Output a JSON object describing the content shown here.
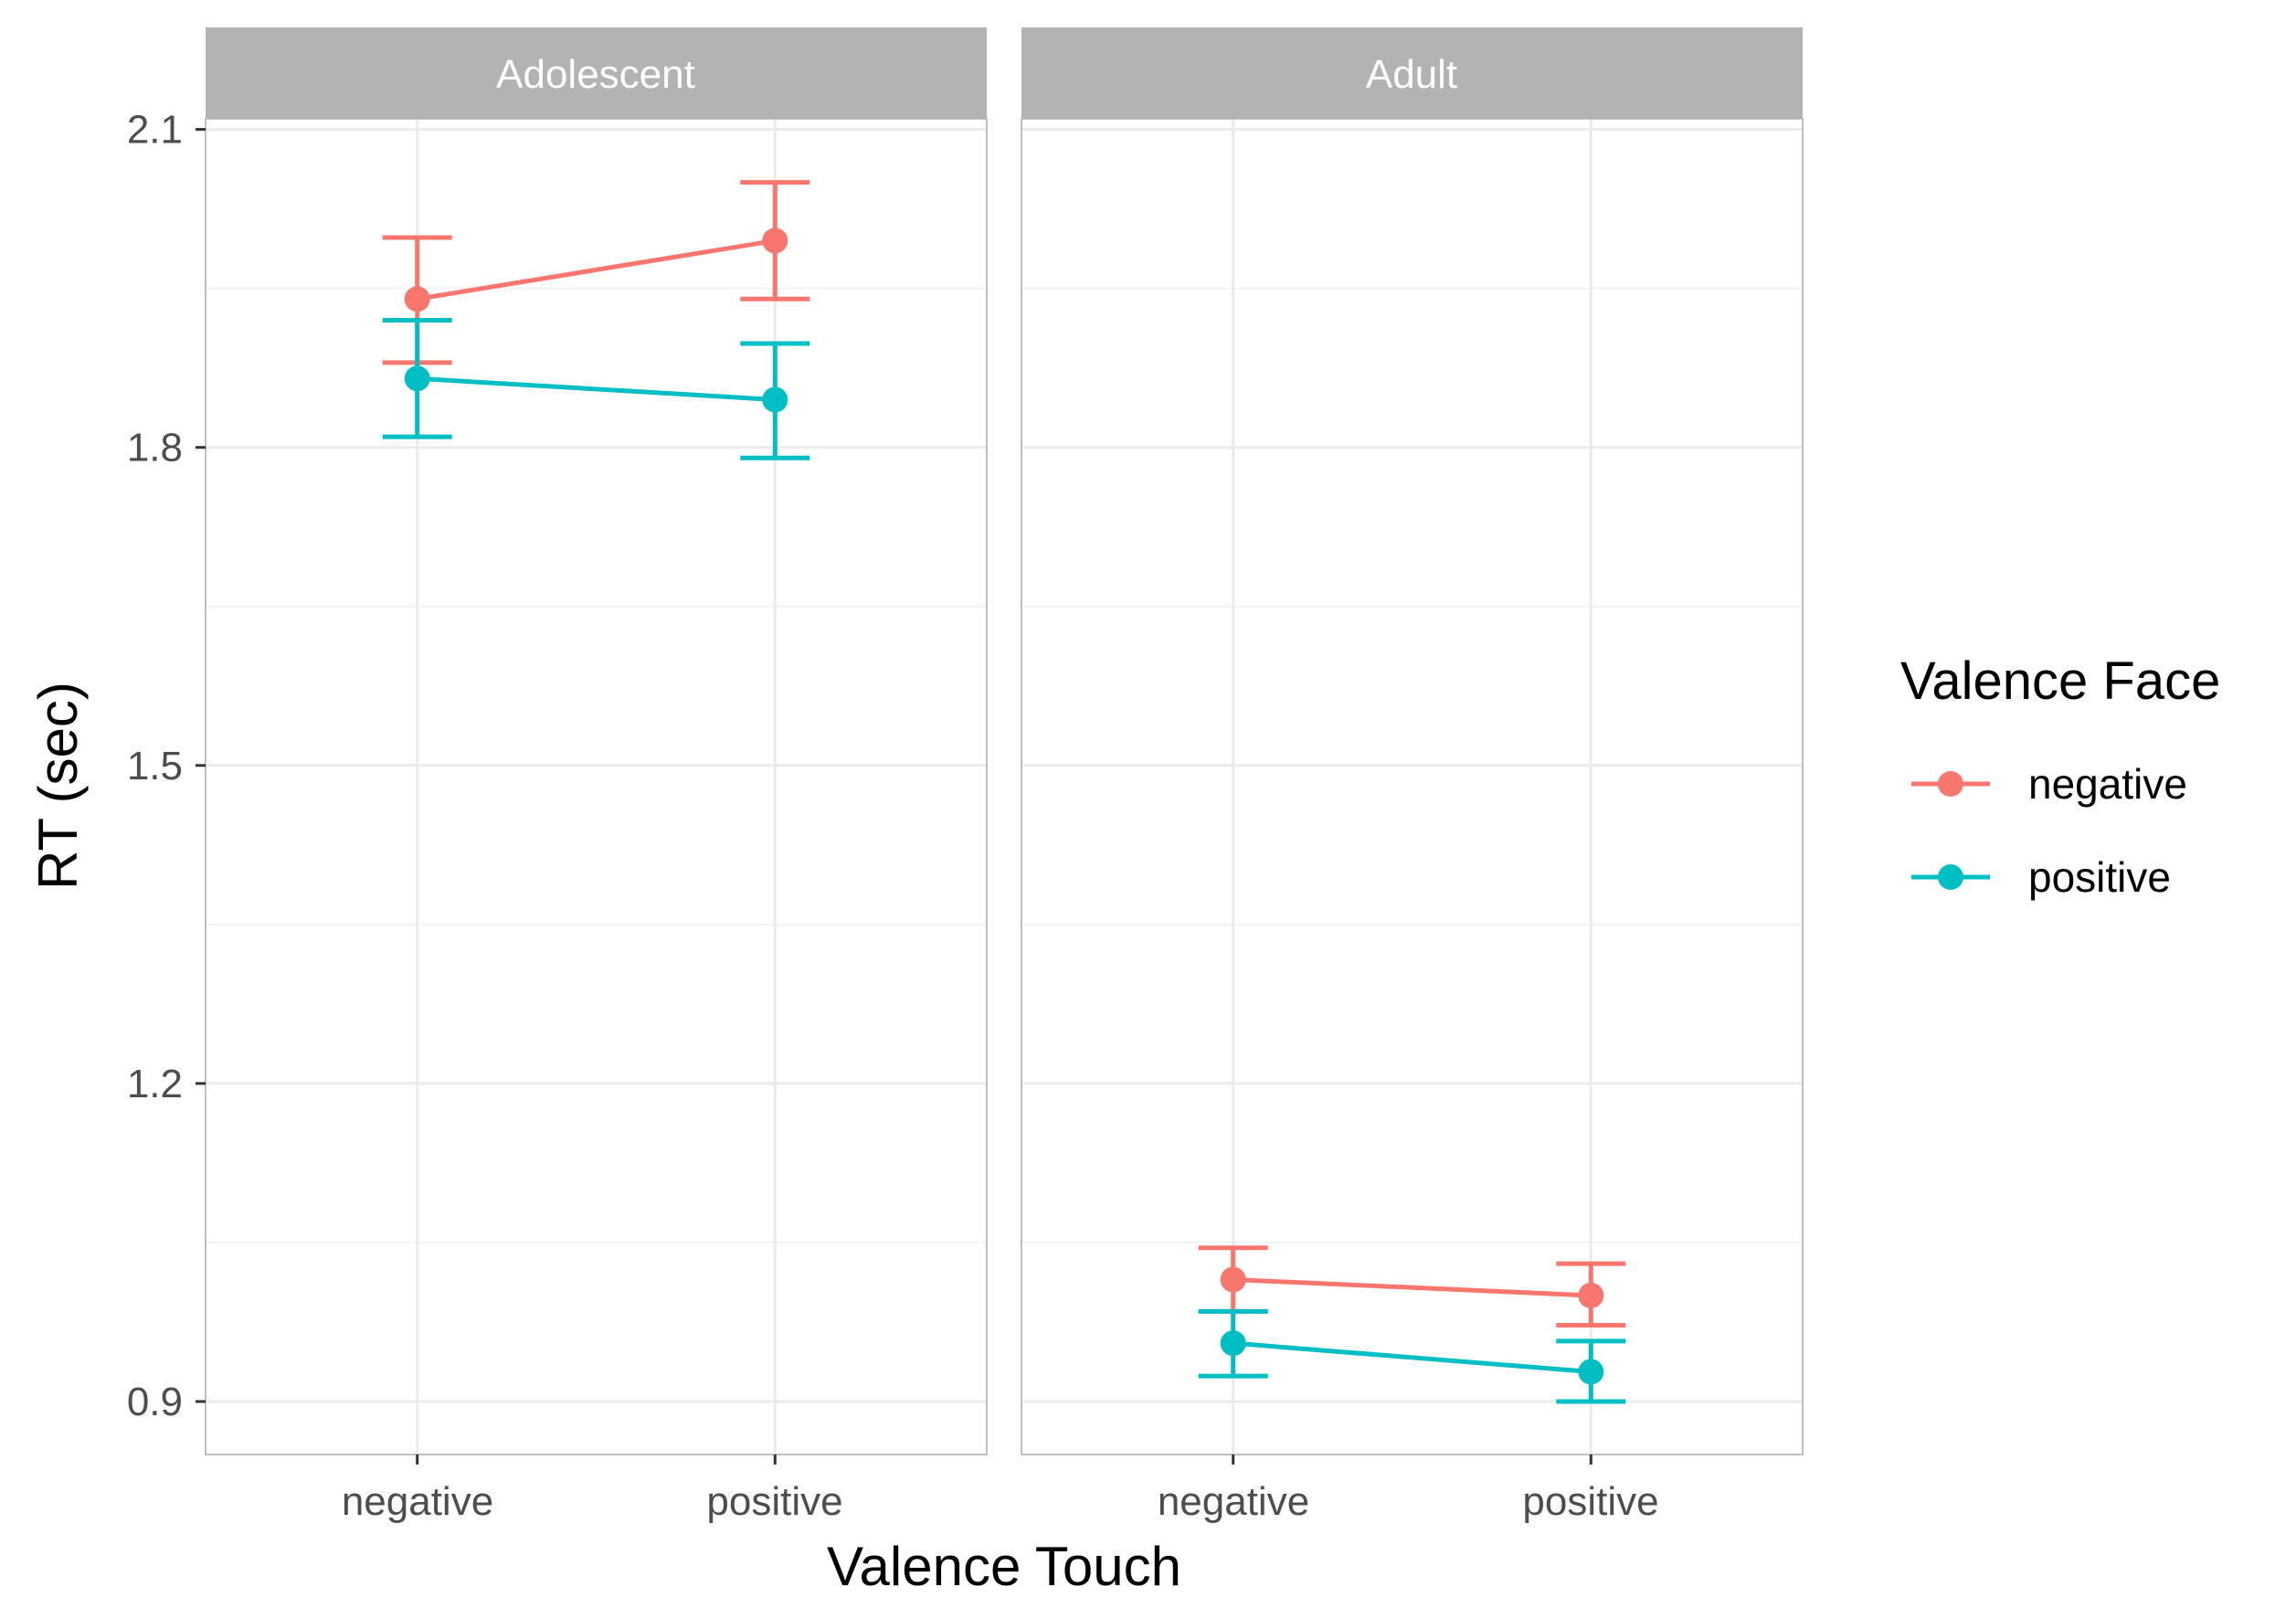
{
  "chart_data": {
    "type": "line",
    "title": "",
    "xlabel": "Valence Touch",
    "ylabel": "RT (sec)",
    "ylim": [
      0.85,
      2.11
    ],
    "yticks": [
      0.9,
      1.2,
      1.5,
      1.8,
      2.1
    ],
    "ytick_labels": [
      "0.9",
      "1.2",
      "1.5",
      "1.8",
      "2.1"
    ],
    "categories": [
      "negative",
      "positive"
    ],
    "legend": {
      "title": "Valence Face",
      "position": "right"
    },
    "colors": {
      "negative": "#F8766D",
      "positive": "#00BFC4",
      "strip": "#b3b3b3",
      "grid": "#ebebeb",
      "panel_border": "#bfbfbf"
    },
    "panels": [
      {
        "label": "Adolescent",
        "series": [
          {
            "name": "negative",
            "values": [
              1.94,
              1.995
            ],
            "lower": [
              1.88,
              1.94
            ],
            "upper": [
              1.998,
              2.05
            ]
          },
          {
            "name": "positive",
            "values": [
              1.865,
              1.845
            ],
            "lower": [
              1.81,
              1.79
            ],
            "upper": [
              1.92,
              1.898
            ]
          }
        ]
      },
      {
        "label": "Adult",
        "series": [
          {
            "name": "negative",
            "values": [
              1.015,
              1.0
            ],
            "lower": [
              0.985,
              0.972
            ],
            "upper": [
              1.045,
              1.03
            ]
          },
          {
            "name": "positive",
            "values": [
              0.955,
              0.928
            ],
            "lower": [
              0.924,
              0.9
            ],
            "upper": [
              0.985,
              0.957
            ]
          }
        ]
      }
    ]
  }
}
